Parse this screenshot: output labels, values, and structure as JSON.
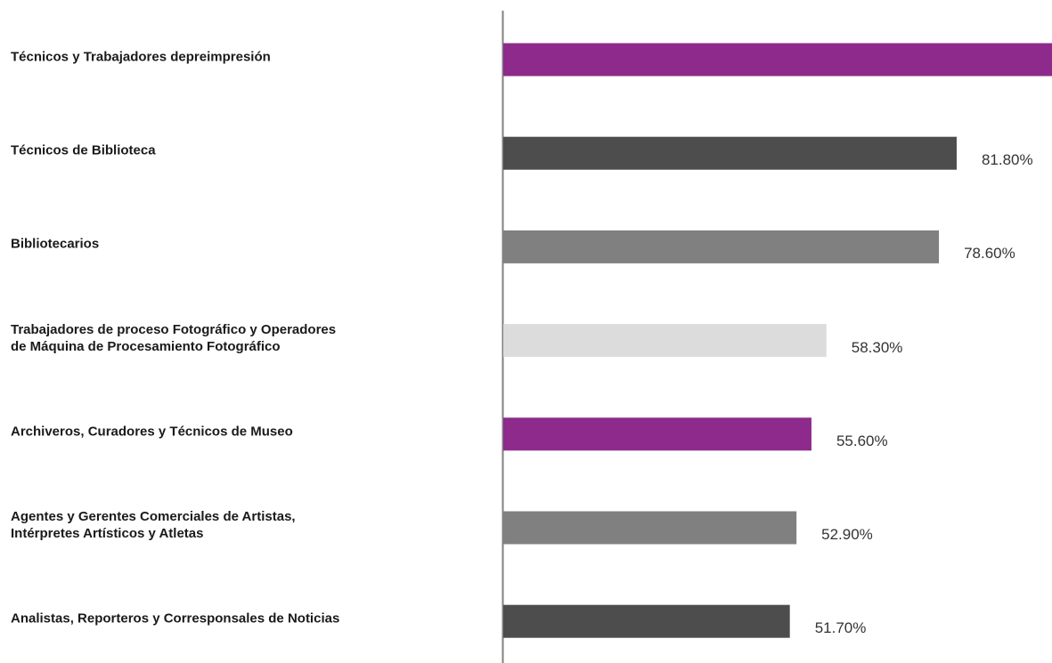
{
  "chart_data": {
    "type": "barh",
    "categories": [
      "Técnicos y Trabajadores depreimpresión",
      "Técnicos de Biblioteca",
      "Bibliotecarios",
      "Trabajadores de proceso Fotográfico y Operadores\nde Máquina de Procesamiento Fotográfico",
      "Archiveros, Curadores y Técnicos de Museo",
      "Agentes y Gerentes Comerciales de Artistas,\nIntérpretes Artísticos y Atletas",
      "Analistas, Reporteros y Corresponsales de Noticias"
    ],
    "values": [
      99,
      81.8,
      78.6,
      58.3,
      55.6,
      52.9,
      51.7
    ],
    "value_labels": [
      null,
      "81.80%",
      "78.60%",
      "58.30%",
      "55.60%",
      "52.90%",
      "51.70%"
    ],
    "colors": [
      "#8e2a8b",
      "#4d4d4d",
      "#808080",
      "#dcdcdc",
      "#8e2a8b",
      "#808080",
      "#4d4d4d"
    ],
    "xlim": [
      0,
      99
    ]
  }
}
